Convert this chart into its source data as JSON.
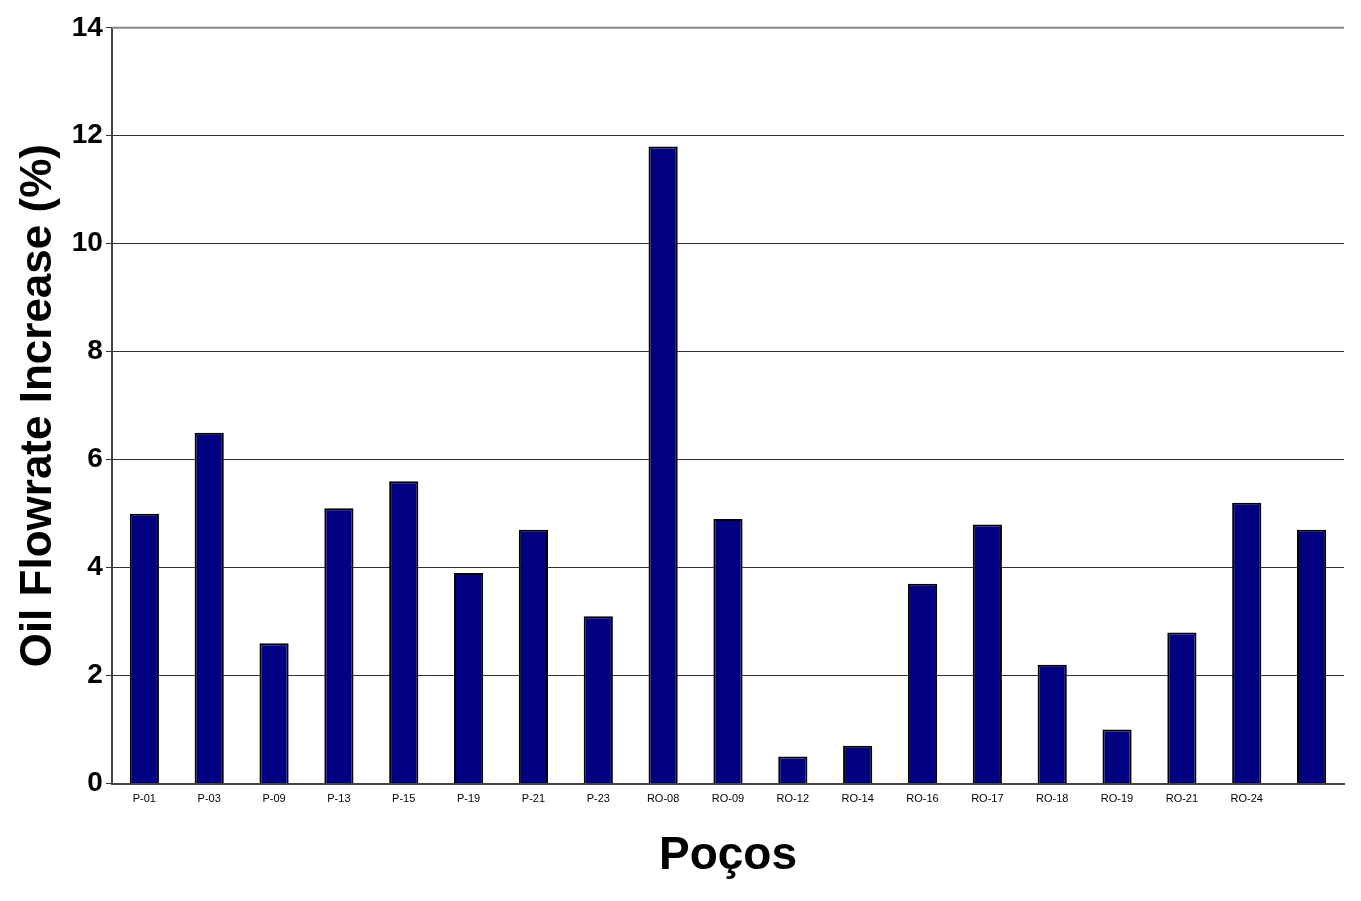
{
  "chart_data": {
    "type": "bar",
    "xlabel": "Poços",
    "ylabel": "Oil Flowrate Increase (%)",
    "categories": [
      "P-01",
      "P-03",
      "P-09",
      "P-13",
      "P-15",
      "P-19",
      "P-21",
      "P-23",
      "RO-08",
      "RO-09",
      "RO-12",
      "RO-14",
      "RO-16",
      "RO-17",
      "RO-18",
      "RO-19",
      "RO-21",
      "RO-24",
      null
    ],
    "values": [
      5.0,
      6.5,
      2.6,
      5.1,
      5.6,
      3.9,
      4.7,
      3.1,
      11.8,
      4.9,
      0.5,
      0.7,
      3.7,
      4.8,
      2.2,
      1.0,
      2.8,
      5.2,
      4.7
    ],
    "color": "#000080",
    "ylim": [
      0,
      14
    ],
    "yticks": [
      0,
      2,
      4,
      6,
      8,
      10,
      12,
      14
    ],
    "grid": "y",
    "legend": false
  }
}
